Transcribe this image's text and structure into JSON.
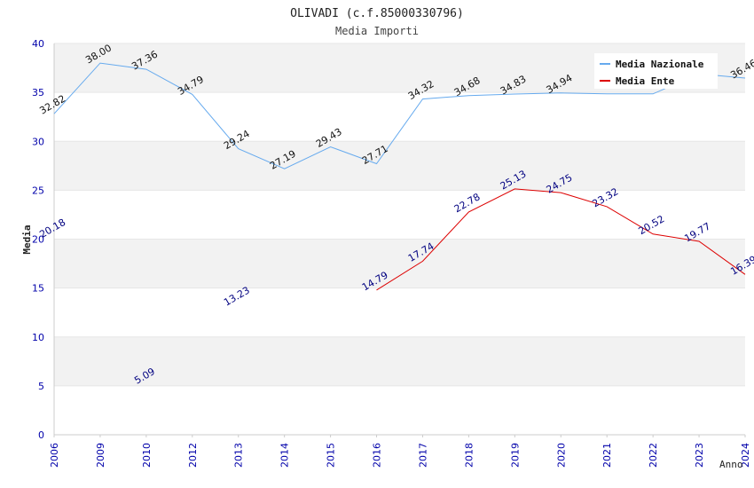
{
  "chart_data": {
    "type": "line",
    "title": "OLIVADI (c.f.85000330796)",
    "subtitle": "Media Importi",
    "xlabel": "Anno",
    "ylabel": "Media",
    "ylim": [
      0,
      40
    ],
    "yticks": [
      0,
      5,
      10,
      15,
      20,
      25,
      30,
      35,
      40
    ],
    "categories": [
      "2006",
      "2009",
      "2010",
      "2012",
      "2013",
      "2014",
      "2015",
      "2016",
      "2017",
      "2018",
      "2019",
      "2020",
      "2021",
      "2022",
      "2023",
      "2024"
    ],
    "grid": true,
    "legend_position": "top-right",
    "series": [
      {
        "name": "Media Nazionale",
        "color": "#66aaee",
        "values": [
          32.82,
          38.0,
          37.36,
          34.79,
          29.24,
          27.19,
          29.43,
          27.71,
          34.32,
          34.68,
          34.83,
          34.94,
          null,
          null,
          null,
          36.46
        ],
        "labels": [
          "32.82",
          "38.00",
          "37.36",
          "34.79",
          "29.24",
          "27.19",
          "29.43",
          "27.71",
          "34.32",
          "34.68",
          "34.83",
          "34.94",
          null,
          null,
          null,
          "36.46"
        ],
        "line_values": [
          32.82,
          38.0,
          37.36,
          34.79,
          29.24,
          27.19,
          29.43,
          27.71,
          34.32,
          34.68,
          34.83,
          34.94,
          34.85,
          34.85,
          36.9,
          36.46
        ]
      },
      {
        "name": "Media Ente",
        "color": "#dd0000",
        "values": [
          20.18,
          null,
          5.09,
          null,
          13.23,
          null,
          null,
          14.79,
          17.74,
          22.78,
          25.13,
          24.75,
          23.32,
          20.52,
          19.77,
          16.39
        ],
        "labels": [
          "20.18",
          null,
          "5.09",
          null,
          "13.23",
          null,
          null,
          "14.79",
          "17.74",
          "22.78",
          "25.13",
          "24.75",
          "23.32",
          "20.52",
          "19.77",
          "16.39"
        ],
        "line_values": [
          null,
          null,
          null,
          null,
          null,
          null,
          null,
          14.79,
          17.74,
          22.78,
          25.13,
          24.75,
          23.32,
          20.52,
          19.77,
          16.39
        ]
      }
    ]
  }
}
